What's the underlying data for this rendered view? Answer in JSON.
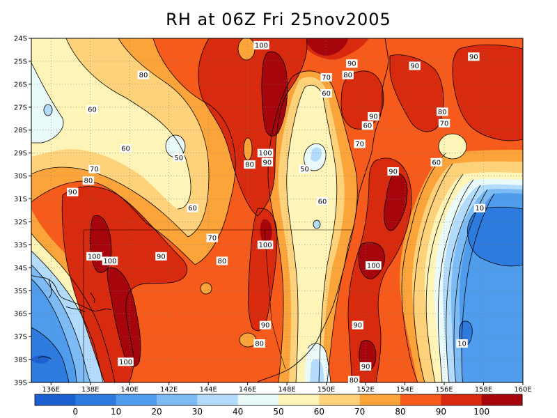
{
  "title": "RH at 06Z Fri 25nov2005",
  "map": {
    "lat_labels": [
      "24S",
      "25S",
      "26S",
      "27S",
      "28S",
      "29S",
      "30S",
      "31S",
      "32S",
      "33S",
      "34S",
      "35S",
      "36S",
      "37S",
      "38S",
      "39S"
    ],
    "lon_labels": [
      "136E",
      "138E",
      "140E",
      "142E",
      "144E",
      "146E",
      "148E",
      "150E",
      "152E",
      "154E",
      "156E",
      "158E",
      "160E"
    ],
    "lat_range": [
      -39,
      -24
    ],
    "lon_range": [
      135,
      160
    ],
    "grid": true,
    "contour_labels": [
      {
        "v": "100",
        "lon": 146.7,
        "lat": -24.3
      },
      {
        "v": "90",
        "lon": 151.3,
        "lat": -25.1
      },
      {
        "v": "90",
        "lon": 154.5,
        "lat": -25.2
      },
      {
        "v": "90",
        "lon": 157.5,
        "lat": -24.8
      },
      {
        "v": "80",
        "lon": 140.7,
        "lat": -25.6
      },
      {
        "v": "70",
        "lon": 150,
        "lat": -25.7
      },
      {
        "v": "80",
        "lon": 151.1,
        "lat": -25.6
      },
      {
        "v": "60",
        "lon": 150,
        "lat": -26.4
      },
      {
        "v": "60",
        "lon": 138.1,
        "lat": -27.1
      },
      {
        "v": "90",
        "lon": 152.4,
        "lat": -27.4
      },
      {
        "v": "80",
        "lon": 155.9,
        "lat": -27.2
      },
      {
        "v": "60",
        "lon": 152.1,
        "lat": -27.8
      },
      {
        "v": "70",
        "lon": 156,
        "lat": -27.7
      },
      {
        "v": "60",
        "lon": 139.8,
        "lat": -28.8
      },
      {
        "v": "70",
        "lon": 151.7,
        "lat": -28.6
      },
      {
        "v": "100",
        "lon": 146.9,
        "lat": -29
      },
      {
        "v": "50",
        "lon": 142.5,
        "lat": -29.2
      },
      {
        "v": "90",
        "lon": 147,
        "lat": -29.4
      },
      {
        "v": "80",
        "lon": 146.1,
        "lat": -29.5
      },
      {
        "v": "60",
        "lon": 155.6,
        "lat": -29.4
      },
      {
        "v": "50",
        "lon": 148.9,
        "lat": -29.7
      },
      {
        "v": "70",
        "lon": 138.2,
        "lat": -29.7
      },
      {
        "v": "90",
        "lon": 153.4,
        "lat": -29.8
      },
      {
        "v": "80",
        "lon": 137.9,
        "lat": -30.2
      },
      {
        "v": "90",
        "lon": 137.1,
        "lat": -30.7
      },
      {
        "v": "60",
        "lon": 149.8,
        "lat": -31.1
      },
      {
        "v": "60",
        "lon": 143.2,
        "lat": -31.4
      },
      {
        "v": "10",
        "lon": 157.8,
        "lat": -31.4
      },
      {
        "v": "70",
        "lon": 144.2,
        "lat": -32.7
      },
      {
        "v": "100",
        "lon": 146.9,
        "lat": -33
      },
      {
        "v": "100",
        "lon": 138.2,
        "lat": -33.5
      },
      {
        "v": "100",
        "lon": 139,
        "lat": -33.7
      },
      {
        "v": "90",
        "lon": 141.6,
        "lat": -33.5
      },
      {
        "v": "80",
        "lon": 144.7,
        "lat": -33.7
      },
      {
        "v": "100",
        "lon": 152.4,
        "lat": -33.9
      },
      {
        "v": "90",
        "lon": 146.9,
        "lat": -36.5
      },
      {
        "v": "90",
        "lon": 151.6,
        "lat": -36.5
      },
      {
        "v": "80",
        "lon": 146.6,
        "lat": -37.3
      },
      {
        "v": "10",
        "lon": 156.9,
        "lat": -37.3
      },
      {
        "v": "100",
        "lon": 139.8,
        "lat": -38.1
      },
      {
        "v": "90",
        "lon": 152,
        "lat": -38.3
      },
      {
        "v": "80",
        "lon": 151.4,
        "lat": -38.9
      }
    ]
  },
  "colorbar": {
    "colors": [
      "#1b5fd1",
      "#2e7be0",
      "#4f9bec",
      "#7dbbf5",
      "#b3dbfb",
      "#eafaf8",
      "#fff4b8",
      "#fdd27a",
      "#fba43a",
      "#f65b1c",
      "#d72a0e",
      "#a7050c"
    ],
    "labels": [
      "0",
      "10",
      "20",
      "30",
      "40",
      "50",
      "60",
      "70",
      "80",
      "90",
      "100"
    ]
  }
}
